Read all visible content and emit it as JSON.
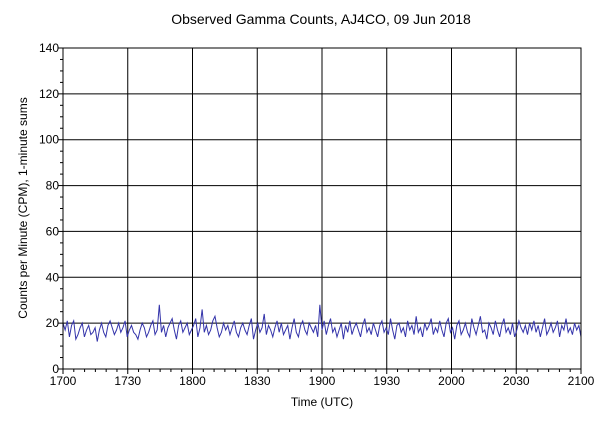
{
  "chart_data": {
    "type": "line",
    "title": "Observed Gamma Counts, AJ4CO, 09 Jun 2018",
    "xlabel": "Time (UTC)",
    "ylabel": "Counts per Minute (CPM), 1-minute sums",
    "xlim": [
      0,
      240
    ],
    "ylim": [
      0,
      140
    ],
    "x_ticks": [
      "1700",
      "1730",
      "1800",
      "1830",
      "1900",
      "1930",
      "2000",
      "2030",
      "2100"
    ],
    "y_ticks": [
      "0",
      "20",
      "40",
      "60",
      "80",
      "100",
      "120",
      "140"
    ],
    "grid": true,
    "series": [
      {
        "color": "#3333aa",
        "x_start_label": "1700",
        "x_end_label": "2100",
        "values": [
          20,
          17,
          21,
          14,
          19,
          21,
          13,
          15,
          18,
          20,
          14,
          17,
          19,
          15,
          16,
          18,
          12,
          17,
          20,
          16,
          14,
          19,
          21,
          18,
          15,
          17,
          20,
          16,
          18,
          21,
          14,
          17,
          19,
          16,
          15,
          13,
          17,
          20,
          18,
          14,
          16,
          19,
          21,
          15,
          17,
          28,
          16,
          19,
          14,
          18,
          20,
          22,
          17,
          13,
          19,
          21,
          16,
          18,
          20,
          15,
          17,
          19,
          22,
          14,
          18,
          26,
          16,
          19,
          15,
          17,
          21,
          23,
          18,
          14,
          16,
          20,
          17,
          19,
          15,
          18,
          21,
          16,
          14,
          18,
          20,
          17,
          15,
          19,
          22,
          13,
          17,
          20,
          16,
          18,
          24,
          15,
          19,
          17,
          14,
          18,
          21,
          16,
          20,
          15,
          17,
          19,
          13,
          18,
          22,
          16,
          14,
          19,
          21,
          17,
          15,
          20,
          18,
          16,
          19,
          14,
          28,
          17,
          21,
          15,
          19,
          22,
          16,
          18,
          14,
          17,
          20,
          13,
          19,
          16,
          21,
          15,
          18,
          20,
          17,
          14,
          19,
          22,
          16,
          18,
          15,
          20,
          17,
          14,
          19,
          21,
          16,
          18,
          15,
          22,
          17,
          13,
          19,
          20,
          16,
          18,
          14,
          21,
          17,
          19,
          15,
          23,
          16,
          18,
          14,
          20,
          17,
          19,
          22,
          15,
          18,
          16,
          21,
          17,
          14,
          20,
          22,
          16,
          18,
          13,
          19,
          21,
          15,
          17,
          20,
          16,
          14,
          22,
          18,
          15,
          19,
          23,
          16,
          17,
          13,
          20,
          18,
          15,
          21,
          17,
          14,
          19,
          22,
          16,
          18,
          15,
          20,
          14,
          17,
          21,
          18,
          16,
          19,
          15,
          20,
          17,
          21,
          16,
          19,
          14,
          18,
          22,
          15,
          17,
          20,
          16,
          18,
          21,
          14,
          19,
          17,
          22,
          16,
          18,
          15,
          20,
          17,
          19,
          14
        ]
      }
    ]
  }
}
